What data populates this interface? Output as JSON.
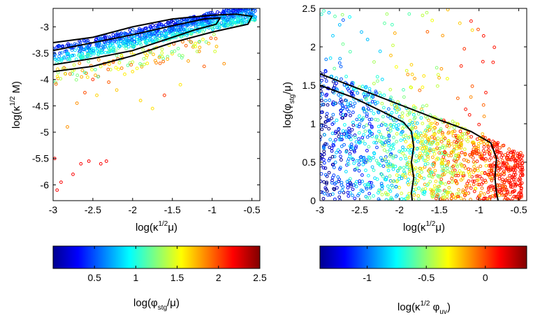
{
  "chart_data": [
    {
      "type": "scatter",
      "title": "",
      "xlabel": {
        "prefix": "log(κ",
        "sup": "1/2",
        "mid": "μ",
        "suffix": ")"
      },
      "ylabel": {
        "prefix": "log(κ",
        "sup": "1/2",
        "mid": " M",
        "suffix": ")"
      },
      "xlim": [
        -3,
        -0.4
      ],
      "ylim": [
        -6.3,
        -2.65
      ],
      "xticks": [
        -3,
        -2.5,
        -2,
        -1.5,
        -1,
        -0.5
      ],
      "xtick_labels": [
        "-3",
        "-2.5",
        "-2",
        "-1.5",
        "-1",
        "-0.5"
      ],
      "yticks": [
        -6,
        -5.5,
        -5,
        -4.5,
        -4,
        -3.5,
        -3
      ],
      "ytick_labels": [
        "-6",
        "-5.5",
        "-5",
        "-4.5",
        "-4",
        "-3.5",
        "-3"
      ],
      "color_variable": "log(φstg/μ)",
      "series": [
        {
          "name": "points (main band)",
          "description": "dense band of circles following y ≈ -3.55 + 0.33*(x+3), colored blue to green",
          "x_range": [
            -3,
            -0.45
          ],
          "y_trend": {
            "intercept_at_x_-3": -3.55,
            "slope": 0.33
          }
        },
        {
          "name": "points (outliers)",
          "sample_points": [
            [
              -2.98,
              -5.5
            ],
            [
              -2.95,
              -6.1
            ],
            [
              -2.9,
              -5.95
            ],
            [
              -2.82,
              -4.9
            ],
            [
              -2.75,
              -5.8
            ],
            [
              -2.65,
              -5.6
            ],
            [
              -2.55,
              -5.55
            ],
            [
              -2.4,
              -5.6
            ],
            [
              -2.33,
              -5.55
            ],
            [
              -2.7,
              -4.45
            ],
            [
              -2.6,
              -4.25
            ],
            [
              -2.5,
              -4.0
            ],
            [
              -2.45,
              -4.3
            ],
            [
              -2.3,
              -4.05
            ],
            [
              -2.2,
              -4.2
            ],
            [
              -2.1,
              -3.9
            ],
            [
              -1.9,
              -4.4
            ],
            [
              -1.75,
              -4.55
            ],
            [
              -1.6,
              -4.3
            ],
            [
              -1.4,
              -4.1
            ],
            [
              -1.1,
              -3.75
            ],
            [
              -0.85,
              -3.7
            ],
            [
              -2.0,
              -3.85
            ],
            [
              -1.3,
              -3.65
            ]
          ]
        }
      ],
      "contours": [
        {
          "name": "outer contour",
          "points": [
            [
              -3,
              -3.3
            ],
            [
              -2.5,
              -3.2
            ],
            [
              -2.0,
              -3.0
            ],
            [
              -1.5,
              -2.85
            ],
            [
              -1.0,
              -2.78
            ],
            [
              -0.7,
              -2.76
            ],
            [
              -0.6,
              -2.78
            ],
            [
              -0.5,
              -2.8
            ],
            [
              -0.55,
              -2.95
            ],
            [
              -0.7,
              -3.0
            ],
            [
              -1.0,
              -3.1
            ],
            [
              -1.5,
              -3.3
            ],
            [
              -2.0,
              -3.55
            ],
            [
              -2.5,
              -3.75
            ],
            [
              -3,
              -3.85
            ]
          ]
        },
        {
          "name": "inner contour",
          "points": [
            [
              -3,
              -3.45
            ],
            [
              -2.5,
              -3.3
            ],
            [
              -2.0,
              -3.15
            ],
            [
              -1.5,
              -2.98
            ],
            [
              -1.1,
              -2.85
            ],
            [
              -0.9,
              -2.83
            ],
            [
              -0.95,
              -2.95
            ],
            [
              -1.2,
              -3.05
            ],
            [
              -1.5,
              -3.2
            ],
            [
              -2.0,
              -3.45
            ],
            [
              -2.5,
              -3.6
            ],
            [
              -3,
              -3.72
            ]
          ]
        }
      ],
      "colorbar": {
        "label": {
          "prefix": "log(φ",
          "sub": "stg",
          "suffix": "/μ)"
        },
        "range": [
          0,
          2.5
        ],
        "ticks": [
          0.5,
          1,
          1.5,
          2,
          2.5
        ],
        "tick_labels": [
          "0.5",
          "1",
          "1.5",
          "2",
          "2.5"
        ],
        "colormap": "jet"
      }
    },
    {
      "type": "scatter",
      "title": "",
      "xlabel": {
        "prefix": "log(κ",
        "sup": "1/2",
        "mid": "μ",
        "suffix": ")"
      },
      "ylabel": {
        "prefix": "log(φ",
        "sub": "stg",
        "suffix": "/μ)"
      },
      "xlim": [
        -3,
        -0.4
      ],
      "ylim": [
        0,
        2.5
      ],
      "xticks": [
        -3,
        -2.5,
        -2,
        -1.5,
        -1,
        -0.5
      ],
      "xtick_labels": [
        "-3",
        "-2.5",
        "-2",
        "-1.5",
        "-1",
        "-0.5"
      ],
      "yticks": [
        0,
        0.5,
        1,
        1.5,
        2,
        2.5
      ],
      "ytick_labels": [
        "0",
        "0.5",
        "1",
        "1.5",
        "2",
        "2.5"
      ],
      "color_variable": "log(κ1/2 φuv)",
      "series": [
        {
          "name": "points",
          "description": "dense cloud below a diagonal boundary from (x=-3,y=1.6) to (x=-0.45,y=0.5); color shifts from blue (left) to red (right)",
          "boundary": [
            [
              -3,
              1.6
            ],
            [
              -2.0,
              1.2
            ],
            [
              -1.3,
              0.9
            ],
            [
              -0.8,
              0.65
            ],
            [
              -0.45,
              0.5
            ]
          ]
        }
      ],
      "contours": [
        {
          "name": "outer contour",
          "points": [
            [
              -3,
              1.65
            ],
            [
              -2.5,
              1.45
            ],
            [
              -2.0,
              1.25
            ],
            [
              -1.5,
              1.05
            ],
            [
              -1.1,
              0.9
            ],
            [
              -0.85,
              0.75
            ],
            [
              -0.78,
              0.55
            ],
            [
              -0.8,
              0.3
            ],
            [
              -0.78,
              0.1
            ],
            [
              -0.76,
              0.0
            ]
          ]
        },
        {
          "name": "inner contour",
          "points": [
            [
              -3,
              1.5
            ],
            [
              -2.6,
              1.35
            ],
            [
              -2.2,
              1.15
            ],
            [
              -1.95,
              1.02
            ],
            [
              -1.85,
              0.9
            ],
            [
              -1.82,
              0.7
            ],
            [
              -1.85,
              0.5
            ],
            [
              -1.82,
              0.3
            ],
            [
              -1.85,
              0.1
            ],
            [
              -1.84,
              0.0
            ]
          ]
        }
      ],
      "colorbar": {
        "label": {
          "prefix": "log(κ",
          "sup": "1/2",
          "mid": " φ",
          "sub": "uv",
          "suffix": ")"
        },
        "range": [
          -1.4,
          0.35
        ],
        "ticks": [
          -1,
          -0.5,
          0
        ],
        "tick_labels": [
          "-1",
          "-0.5",
          "0"
        ],
        "colormap": "jet"
      }
    }
  ]
}
